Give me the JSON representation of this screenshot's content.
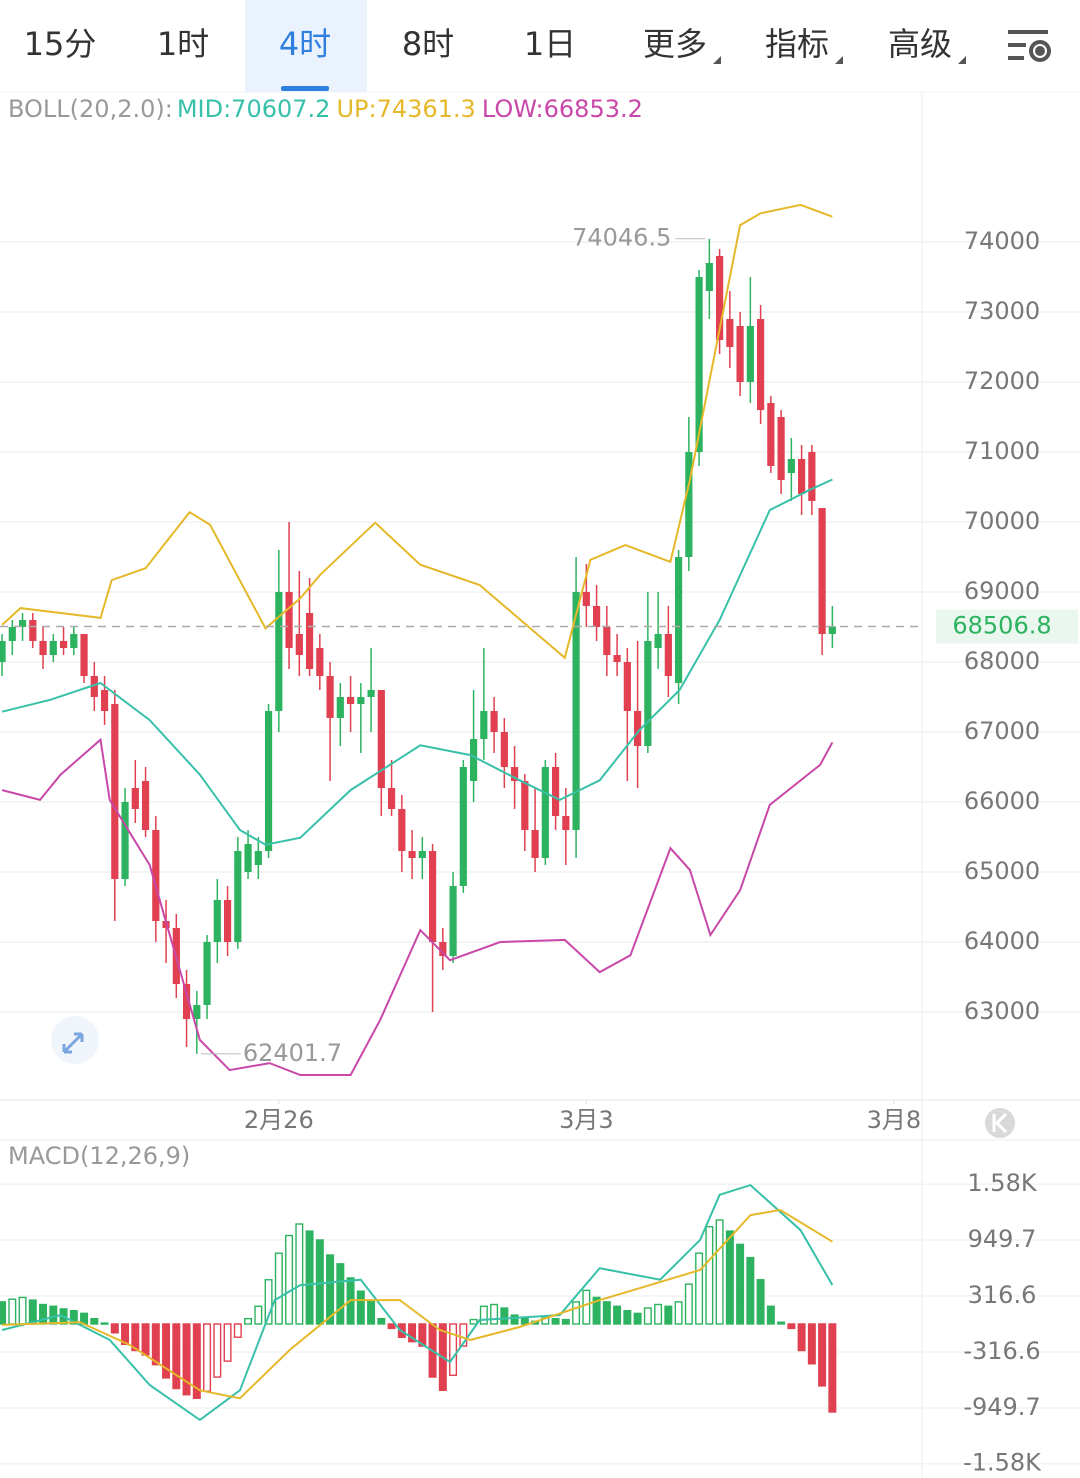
{
  "tabs": [
    "15分",
    "1时",
    "4时",
    "8时",
    "1日",
    "更多",
    "指标",
    "高级"
  ],
  "selected_tab": 2,
  "chart_data": [
    {
      "type": "candlestick",
      "title": "BOLL(20,2.0):",
      "up_color": "#2db360",
      "down_color": "#e04050",
      "xlim": [
        -0.2,
        89.55
      ],
      "xticks": [
        {
          "value": 27,
          "label": "2月26"
        },
        {
          "value": 57,
          "label": "3月3"
        },
        {
          "value": 87,
          "label": "3月8"
        }
      ],
      "ylim": [
        61742.9,
        75600
      ],
      "yticks": [
        63000,
        64000,
        65000,
        66000,
        67000,
        68000,
        69000,
        70000,
        71000,
        72000,
        73000,
        74000
      ],
      "grid": true,
      "open": [
        68000,
        68300,
        68500,
        68600,
        68300,
        68100,
        68300,
        68200,
        68400,
        67800,
        67600,
        67400,
        64900,
        66200,
        66300,
        65600,
        64300,
        64200,
        63400,
        62900,
        63100,
        64000,
        64600,
        64000,
        65000,
        65100,
        65300,
        67300,
        69000,
        68400,
        68700,
        68200,
        67800,
        67200,
        67500,
        67400,
        67500,
        67600,
        66200,
        65900,
        65300,
        65200,
        65300,
        64000,
        63800,
        64800,
        66300,
        66900,
        67300,
        67000,
        66500,
        66300,
        65600,
        65200,
        66500,
        65800,
        65600,
        69000,
        68800,
        68500,
        68100,
        68000,
        67300,
        66800,
        68200,
        68400,
        67700,
        69500,
        71000,
        73300,
        73800,
        72900,
        72800,
        72000,
        72900,
        71700,
        71500,
        70700,
        70900,
        71000,
        70200,
        68400
      ],
      "high": [
        68400,
        68600,
        68700,
        68700,
        68500,
        68400,
        68500,
        68500,
        68400,
        68000,
        67800,
        67600,
        66200,
        66600,
        66500,
        65800,
        64600,
        64400,
        63600,
        63300,
        64100,
        64900,
        64800,
        65500,
        65600,
        65500,
        67400,
        69600,
        70000,
        69300,
        69200,
        68400,
        68000,
        67700,
        67800,
        67700,
        68200,
        67600,
        66600,
        66100,
        65600,
        65500,
        65400,
        64200,
        65000,
        66600,
        67600,
        68200,
        67500,
        67200,
        66800,
        66400,
        66200,
        66600,
        66700,
        66200,
        69500,
        69400,
        69100,
        68800,
        68400,
        68200,
        68300,
        69000,
        69000,
        68800,
        69600,
        71500,
        73600,
        74046.5,
        73900,
        73300,
        73000,
        73500,
        73100,
        71800,
        71600,
        71200,
        71100,
        71100,
        70200,
        68800
      ],
      "low": [
        67800,
        68100,
        68300,
        68200,
        67900,
        68000,
        68100,
        68100,
        67700,
        67300,
        67100,
        64300,
        64800,
        65700,
        65500,
        64000,
        63700,
        63200,
        62500,
        62401.7,
        62900,
        63700,
        63800,
        63900,
        64900,
        64900,
        65200,
        67000,
        67900,
        67800,
        67800,
        67600,
        66300,
        66800,
        67000,
        66700,
        67000,
        65800,
        65800,
        65000,
        64900,
        64900,
        63000,
        63600,
        63700,
        64700,
        66000,
        66600,
        66700,
        66200,
        65900,
        65300,
        65000,
        65100,
        65600,
        65100,
        65200,
        68500,
        68300,
        67800,
        67800,
        66300,
        66200,
        66700,
        67900,
        67500,
        67400,
        69300,
        70800,
        72900,
        72400,
        72200,
        71800,
        71700,
        71400,
        70700,
        70400,
        70300,
        70100,
        70100,
        68100,
        68200
      ],
      "close": [
        68300,
        68500,
        68600,
        68300,
        68100,
        68300,
        68200,
        68400,
        67800,
        67500,
        67300,
        64900,
        66000,
        65900,
        65600,
        64300,
        64200,
        63400,
        62900,
        63100,
        64000,
        64600,
        64000,
        65300,
        65400,
        65300,
        67300,
        69000,
        68200,
        68100,
        67900,
        67800,
        67200,
        67500,
        67400,
        67500,
        67600,
        66200,
        65900,
        65300,
        65200,
        65300,
        64000,
        63800,
        64800,
        66500,
        66900,
        67300,
        67000,
        66500,
        66300,
        65600,
        65200,
        66500,
        65800,
        65600,
        69000,
        68800,
        68500,
        68100,
        68000,
        67300,
        66800,
        68300,
        68400,
        67800,
        69500,
        71000,
        73500,
        73700,
        72600,
        72500,
        72000,
        72800,
        71600,
        70800,
        70600,
        70900,
        70400,
        70300,
        68400,
        68506.8
      ],
      "lines": [
        {
          "label": "MID:70607.2",
          "color": "#38c0a8",
          "x": [
            0,
            4.7,
            9.6,
            14.4,
            19.3,
            23.2,
            25.7,
            29.1,
            34,
            40.8,
            45.7,
            50.5,
            54.4,
            58.3,
            62.2,
            66.1,
            70,
            74.9,
            78.8,
            81
          ],
          "values": [
            67290,
            67460,
            67700,
            67170,
            66390,
            65600,
            65390,
            65490,
            66170,
            66810,
            66670,
            66310,
            66030,
            66310,
            67030,
            67600,
            68600,
            70170,
            70460,
            70607.2
          ]
        },
        {
          "label": "UP:74361.3",
          "color": "#e5b82a",
          "x": [
            0,
            1.8,
            9.6,
            10.7,
            14,
            18.3,
            20.3,
            25.7,
            29.1,
            31,
            36.4,
            40.8,
            46.6,
            54.9,
            57.4,
            60.8,
            65.2,
            67.1,
            72,
            74,
            77.9,
            81
          ],
          "values": [
            68530,
            68770,
            68630,
            69170,
            69340,
            70140,
            69960,
            68480,
            68910,
            69240,
            69990,
            69390,
            69100,
            68060,
            69460,
            69670,
            69430,
            70600,
            74240,
            74410,
            74530,
            74361.3
          ]
        },
        {
          "label": "LOW:66853.2",
          "color": "#c847a8",
          "x": [
            0,
            3.7,
            5.7,
            9.6,
            10.5,
            14.4,
            19.3,
            22.2,
            26.1,
            29.1,
            34,
            36.9,
            40.8,
            43.7,
            48.6,
            54.9,
            58.3,
            61.3,
            65.2,
            67.1,
            69.1,
            72,
            74.9,
            79.8,
            81
          ],
          "values": [
            66170,
            66030,
            66390,
            66890,
            66030,
            65100,
            62600,
            62170,
            62270,
            62100,
            62100,
            62890,
            64170,
            63740,
            64000,
            64030,
            63570,
            63810,
            65340,
            65030,
            64100,
            64740,
            65960,
            66530,
            66853.2
          ]
        }
      ]
    },
    {
      "type": "macd",
      "title": "MACD(12,26,9)",
      "up_color": "#2db360",
      "down_color": "#e04050",
      "ylim": [
        -1651,
        2080
      ],
      "yticks": [
        {
          "value": 1580,
          "label": "1.58K"
        },
        949.7,
        316.6,
        -316.6,
        -949.7,
        {
          "value": -1580,
          "label": "-1.58K"
        }
      ],
      "values": [
        250,
        280,
        300,
        270,
        220,
        200,
        170,
        150,
        120,
        60,
        10,
        -100,
        -230,
        -300,
        -350,
        -460,
        -610,
        -730,
        -800,
        -840,
        -760,
        -600,
        -420,
        -150,
        60,
        200,
        500,
        800,
        1000,
        1130,
        1050,
        950,
        780,
        680,
        520,
        370,
        260,
        60,
        -50,
        -150,
        -200,
        -250,
        -600,
        -750,
        -580,
        -250,
        50,
        200,
        220,
        180,
        100,
        60,
        30,
        80,
        60,
        50,
        250,
        380,
        300,
        250,
        200,
        150,
        120,
        180,
        220,
        200,
        250,
        450,
        800,
        1100,
        1175,
        1050,
        900,
        750,
        500,
        200,
        20,
        -50,
        -300,
        -450,
        -700,
        -995
      ],
      "lines": [
        {
          "color": "#38c0a8",
          "x": [
            0,
            5.7,
            10.5,
            14.4,
            19.3,
            23.2,
            26.6,
            29.1,
            35,
            38.8,
            43.7,
            46.6,
            54.4,
            58.3,
            64.2,
            68.1,
            70,
            73,
            77.9,
            81
          ],
          "values": [
            -68,
            100,
            -180,
            -690,
            -1085,
            -750,
            270,
            440,
            500,
            -68,
            -430,
            45,
            100,
            630,
            500,
            950,
            1460,
            1570,
            1060,
            440
          ]
        },
        {
          "color": "#e5b82a",
          "x": [
            0,
            7.6,
            12.5,
            19.3,
            23.2,
            28.1,
            34,
            38.8,
            42.7,
            45.7,
            50.5,
            58.3,
            63.2,
            68.1,
            73,
            75.9,
            81
          ],
          "values": [
            -10,
            20,
            -240,
            -750,
            -840,
            -290,
            270,
            270,
            -68,
            -180,
            -34,
            270,
            440,
            610,
            1230,
            1290,
            930
          ]
        }
      ]
    }
  ]
}
